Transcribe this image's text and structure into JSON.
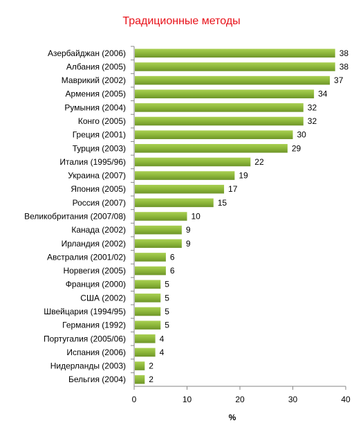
{
  "chart_data": {
    "type": "bar",
    "orientation": "horizontal",
    "title": "Традиционные методы",
    "xlabel": "%",
    "ylabel": "",
    "xlim": [
      0,
      40
    ],
    "x_ticks": [
      "0",
      "10",
      "20",
      "30",
      "40"
    ],
    "grid": false,
    "legend": "none",
    "bar_color": "#8db73a",
    "title_color": "#e8121a",
    "categories": [
      "Азербайджан (2006)",
      "Албания (2005)",
      "Маврикий (2002)",
      "Армения (2005)",
      "Румыния (2004)",
      "Конго (2005)",
      "Греция (2001)",
      "Турция (2003)",
      "Италия (1995/96)",
      "Украина (2007)",
      "Япония (2005)",
      "Россия (2007)",
      "Великобритания (2007/08)",
      "Канада (2002)",
      "Ирландия (2002)",
      "Австралия (2001/02)",
      "Норвегия (2005)",
      "Франция (2000)",
      "США (2002)",
      "Швейцария (1994/95)",
      "Германия (1992)",
      "Португалия (2005/06)",
      "Испания (2006)",
      "Нидерланды (2003)",
      "Бельгия (2004)"
    ],
    "values": [
      38,
      38,
      37,
      34,
      32,
      32,
      30,
      29,
      22,
      19,
      17,
      15,
      10,
      9,
      9,
      6,
      6,
      5,
      5,
      5,
      5,
      4,
      4,
      2,
      2
    ],
    "data_labels": [
      "38",
      "38",
      "37",
      "34",
      "32",
      "32",
      "30",
      "29",
      "22",
      "19",
      "17",
      "15",
      "10",
      "9",
      "9",
      "6",
      "6",
      "5",
      "5",
      "5",
      "5",
      "4",
      "4",
      "2",
      "2"
    ]
  }
}
